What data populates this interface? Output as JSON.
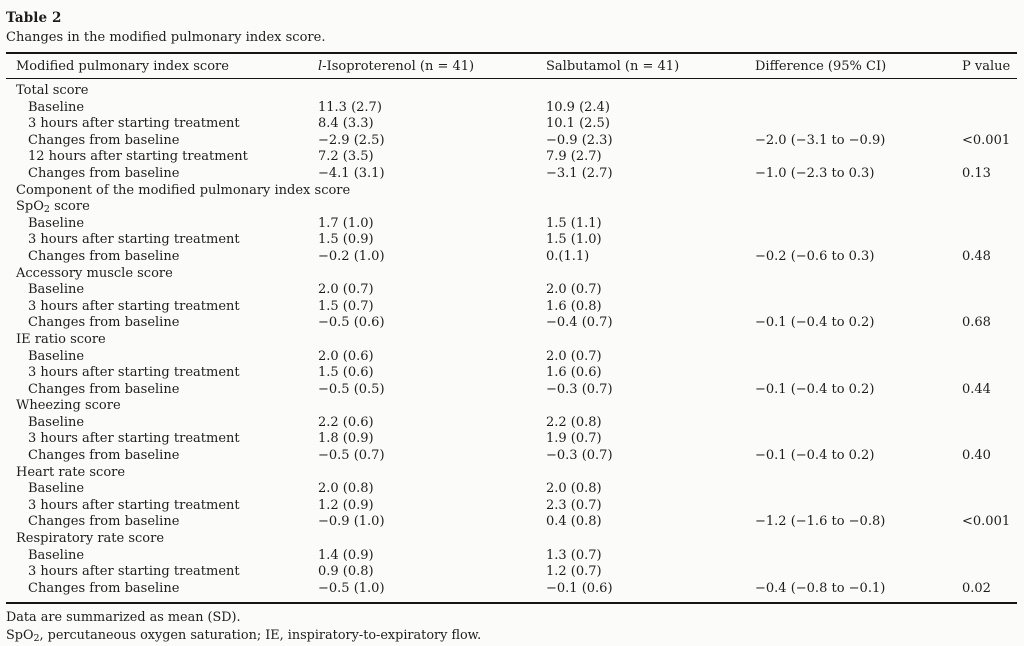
{
  "table": {
    "label": "Table 2",
    "caption": "Changes in the modified pulmonary index score.",
    "header": {
      "col1": "Modified pulmonary index score",
      "col2_prefix": "l",
      "col2_rest": "-Isoproterenol (n = 41)",
      "col3": "Salbutamol (n = 41)",
      "col4": "Difference (95% CI)",
      "col5": "P value"
    },
    "rows": [
      {
        "label": "Total score",
        "indent": 0,
        "iso": "",
        "sal": "",
        "diff": "",
        "p": ""
      },
      {
        "label": "Baseline",
        "indent": 1,
        "iso": "11.3 (2.7)",
        "sal": "10.9 (2.4)",
        "diff": "",
        "p": ""
      },
      {
        "label": "3 hours after starting treatment",
        "indent": 1,
        "iso": "8.4 (3.3)",
        "sal": "10.1 (2.5)",
        "diff": "",
        "p": ""
      },
      {
        "label": "Changes from baseline",
        "indent": 1,
        "iso": "−2.9 (2.5)",
        "sal": "−0.9 (2.3)",
        "diff": "−2.0 (−3.1 to −0.9)",
        "p": "<0.001"
      },
      {
        "label": "12 hours after starting treatment",
        "indent": 1,
        "iso": "7.2 (3.5)",
        "sal": "7.9 (2.7)",
        "diff": "",
        "p": ""
      },
      {
        "label": "Changes from baseline",
        "indent": 1,
        "iso": "−4.1 (3.1)",
        "sal": "−3.1 (2.7)",
        "diff": "−1.0 (−2.3 to 0.3)",
        "p": "0.13"
      },
      {
        "label": "Component of the modified pulmonary index score",
        "indent": 0,
        "iso": "",
        "sal": "",
        "diff": "",
        "p": ""
      },
      {
        "label": "SpO2 score",
        "indent": 0,
        "iso": "",
        "sal": "",
        "diff": "",
        "p": ""
      },
      {
        "label": "Baseline",
        "indent": 1,
        "iso": "1.7 (1.0)",
        "sal": "1.5 (1.1)",
        "diff": "",
        "p": ""
      },
      {
        "label": "3 hours after starting treatment",
        "indent": 1,
        "iso": "1.5 (0.9)",
        "sal": "1.5 (1.0)",
        "diff": "",
        "p": ""
      },
      {
        "label": "Changes from baseline",
        "indent": 1,
        "iso": "−0.2 (1.0)",
        "sal": "0.(1.1)",
        "diff": "−0.2 (−0.6 to 0.3)",
        "p": "0.48"
      },
      {
        "label": "Accessory muscle score",
        "indent": 0,
        "iso": "",
        "sal": "",
        "diff": "",
        "p": ""
      },
      {
        "label": "Baseline",
        "indent": 1,
        "iso": "2.0 (0.7)",
        "sal": "2.0 (0.7)",
        "diff": "",
        "p": ""
      },
      {
        "label": "3 hours after starting treatment",
        "indent": 1,
        "iso": "1.5 (0.7)",
        "sal": "1.6 (0.8)",
        "diff": "",
        "p": ""
      },
      {
        "label": "Changes from baseline",
        "indent": 1,
        "iso": "−0.5 (0.6)",
        "sal": "−0.4 (0.7)",
        "diff": "−0.1 (−0.4 to 0.2)",
        "p": "0.68"
      },
      {
        "label": "IE ratio score",
        "indent": 0,
        "iso": "",
        "sal": "",
        "diff": "",
        "p": ""
      },
      {
        "label": "Baseline",
        "indent": 1,
        "iso": "2.0 (0.6)",
        "sal": "2.0 (0.7)",
        "diff": "",
        "p": ""
      },
      {
        "label": "3 hours after starting treatment",
        "indent": 1,
        "iso": "1.5 (0.6)",
        "sal": "1.6 (0.6)",
        "diff": "",
        "p": ""
      },
      {
        "label": "Changes from baseline",
        "indent": 1,
        "iso": "−0.5 (0.5)",
        "sal": "−0.3 (0.7)",
        "diff": "−0.1 (−0.4 to 0.2)",
        "p": "0.44"
      },
      {
        "label": "Wheezing score",
        "indent": 0,
        "iso": "",
        "sal": "",
        "diff": "",
        "p": ""
      },
      {
        "label": "Baseline",
        "indent": 1,
        "iso": "2.2 (0.6)",
        "sal": "2.2 (0.8)",
        "diff": "",
        "p": ""
      },
      {
        "label": "3 hours after starting treatment",
        "indent": 1,
        "iso": "1.8 (0.9)",
        "sal": "1.9 (0.7)",
        "diff": "",
        "p": ""
      },
      {
        "label": "Changes from baseline",
        "indent": 1,
        "iso": "−0.5 (0.7)",
        "sal": "−0.3 (0.7)",
        "diff": "−0.1 (−0.4 to 0.2)",
        "p": "0.40"
      },
      {
        "label": "Heart rate score",
        "indent": 0,
        "iso": "",
        "sal": "",
        "diff": "",
        "p": ""
      },
      {
        "label": "Baseline",
        "indent": 1,
        "iso": "2.0 (0.8)",
        "sal": "2.0 (0.8)",
        "diff": "",
        "p": ""
      },
      {
        "label": "3 hours after starting treatment",
        "indent": 1,
        "iso": "1.2 (0.9)",
        "sal": "2.3 (0.7)",
        "diff": "",
        "p": ""
      },
      {
        "label": "Changes from baseline",
        "indent": 1,
        "iso": "−0.9 (1.0)",
        "sal": "0.4 (0.8)",
        "diff": "−1.2 (−1.6 to −0.8)",
        "p": "<0.001"
      },
      {
        "label": "Respiratory rate score",
        "indent": 0,
        "iso": "",
        "sal": "",
        "diff": "",
        "p": ""
      },
      {
        "label": "Baseline",
        "indent": 1,
        "iso": "1.4 (0.9)",
        "sal": "1.3 (0.7)",
        "diff": "",
        "p": ""
      },
      {
        "label": "3 hours after starting treatment",
        "indent": 1,
        "iso": "0.9 (0.8)",
        "sal": "1.2 (0.7)",
        "diff": "",
        "p": ""
      },
      {
        "label": "Changes from baseline",
        "indent": 1,
        "iso": "−0.5 (1.0)",
        "sal": "−0.1 (0.6)",
        "diff": "−0.4 (−0.8 to −0.1)",
        "p": "0.02"
      }
    ],
    "footnotes": [
      "Data are summarized as mean (SD).",
      "SpO2, percutaneous oxygen saturation; IE, inspiratory-to-expiratory flow."
    ]
  }
}
